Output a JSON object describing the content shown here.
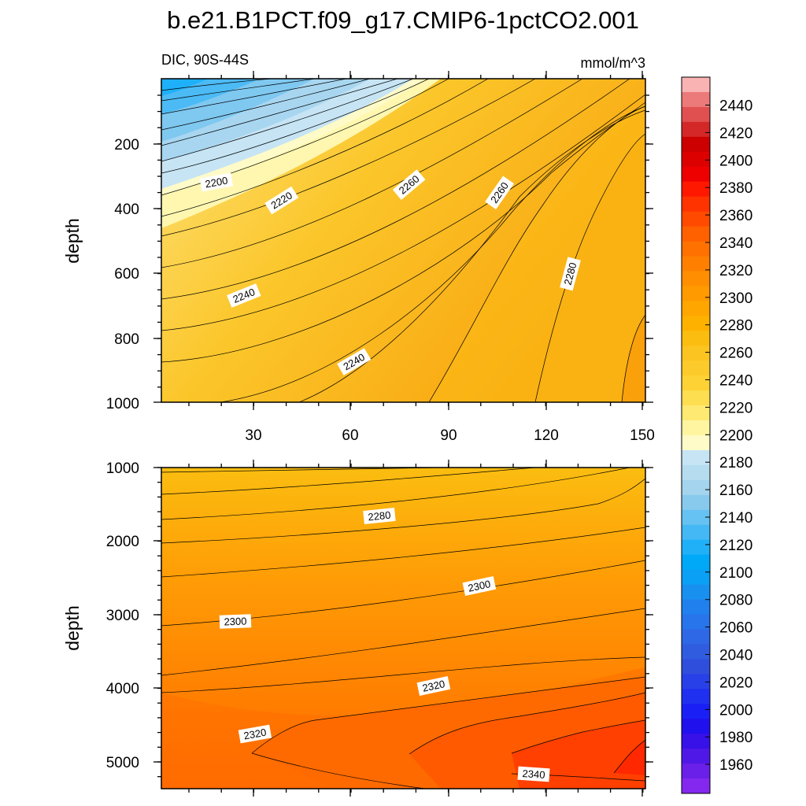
{
  "title": "b.e21.B1PCT.f09_g17.CMIP6-1pctCO2.001",
  "chart_data": [
    {
      "type": "contour",
      "panel": "upper",
      "left_string": "DIC, 90S-44S",
      "right_string": "mmol/m^3",
      "ylabel": "depth",
      "xlim": [
        0,
        152
      ],
      "ylim": [
        0,
        1000
      ],
      "y_reversed": true,
      "x_ticks": [
        "30",
        "60",
        "90",
        "120",
        "150"
      ],
      "y_ticks": [
        "200",
        "400",
        "600",
        "800",
        "1000"
      ],
      "contour_labels": [
        "2200",
        "2220",
        "2240",
        "2260",
        "2240",
        "2260",
        "2280"
      ]
    },
    {
      "type": "contour",
      "panel": "lower",
      "ylabel": "depth",
      "xlim": [
        0,
        152
      ],
      "ylim": [
        1000,
        5400
      ],
      "y_reversed": true,
      "y_ticks": [
        "1000",
        "2000",
        "3000",
        "4000",
        "5000"
      ],
      "contour_labels": [
        "2280",
        "2300",
        "2300",
        "2320",
        "2320",
        "2340"
      ]
    }
  ],
  "colorbar": {
    "labels": [
      "2440",
      "2420",
      "2400",
      "2380",
      "2360",
      "2340",
      "2320",
      "2300",
      "2280",
      "2260",
      "2240",
      "2220",
      "2200",
      "2180",
      "2160",
      "2140",
      "2120",
      "2100",
      "2080",
      "2060",
      "2040",
      "2020",
      "2000",
      "1980",
      "1960"
    ],
    "colors_top_to_bottom": [
      "#fab3b3",
      "#ec7a7a",
      "#e05050",
      "#d42828",
      "#cc0000",
      "#dd0000",
      "#ee0000",
      "#ff1800",
      "#ff3300",
      "#ff4a00",
      "#ff6000",
      "#ff7100",
      "#ff8000",
      "#ff8e00",
      "#ff9a00",
      "#ffa600",
      "#ffb100",
      "#fbbd10",
      "#fbc420",
      "#fcca2a",
      "#fdd235",
      "#fdde50",
      "#feea72",
      "#fff5a0",
      "#fffbc8",
      "#c6e4f4",
      "#b6dcf0",
      "#a4d4ee",
      "#88caee",
      "#66c2f2",
      "#44b8f5",
      "#20b0f8",
      "#00a8f8",
      "#0aa0f5",
      "#1890f0",
      "#2080ee",
      "#2874ea",
      "#2e68e6",
      "#305ce0",
      "#304edc",
      "#2840e8",
      "#2030f0",
      "#1a20f5",
      "#2010ee",
      "#3810e8",
      "#5018e6",
      "#6a20e8",
      "#8428f0"
    ]
  }
}
